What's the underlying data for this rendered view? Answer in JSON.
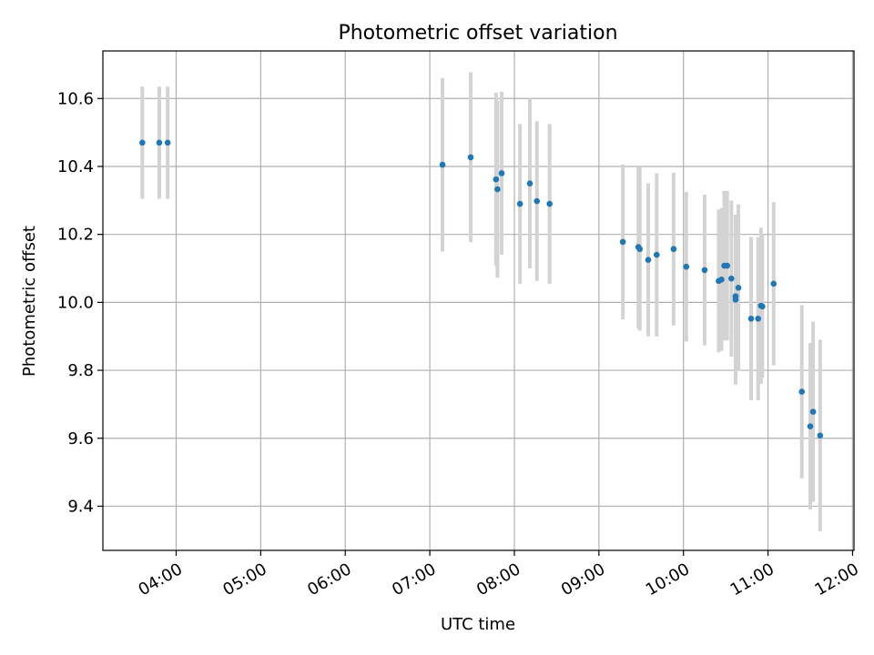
{
  "chart_data": {
    "type": "scatter",
    "title": "Photometric offset variation",
    "xlabel": "UTC time",
    "ylabel": "Photometric offset",
    "x_tick_labels": [
      "04:00",
      "05:00",
      "06:00",
      "07:00",
      "08:00",
      "09:00",
      "10:00",
      "11:00",
      "12:00"
    ],
    "y_tick_labels": [
      "9.4",
      "9.6",
      "9.8",
      "10.0",
      "10.2",
      "10.4",
      "10.6"
    ],
    "y_ticks": [
      9.4,
      9.6,
      9.8,
      10.0,
      10.2,
      10.4,
      10.6
    ],
    "xlim": [
      "03:08",
      "12:01"
    ],
    "ylim": [
      9.27,
      10.74
    ],
    "grid": true,
    "colors": {
      "point": "#1f77b4",
      "errorbar": "#d3d3d3",
      "grid": "#b0b0b0",
      "axis": "#000000"
    },
    "series": [
      {
        "points": [
          {
            "x": "03:36",
            "y": 10.47,
            "yerr": 0.165
          },
          {
            "x": "03:48",
            "y": 10.47,
            "yerr": 0.165
          },
          {
            "x": "03:54",
            "y": 10.47,
            "yerr": 0.165
          },
          {
            "x": "07:09",
            "y": 10.405,
            "yerr": 0.255
          },
          {
            "x": "07:29",
            "y": 10.427,
            "yerr": 0.25
          },
          {
            "x": "07:47",
            "y": 10.362,
            "yerr": 0.255
          },
          {
            "x": "07:48",
            "y": 10.333,
            "yerr": 0.26
          },
          {
            "x": "07:51",
            "y": 10.38,
            "yerr": 0.24
          },
          {
            "x": "08:04",
            "y": 10.29,
            "yerr": 0.235
          },
          {
            "x": "08:11",
            "y": 10.35,
            "yerr": 0.25
          },
          {
            "x": "08:16",
            "y": 10.298,
            "yerr": 0.235
          },
          {
            "x": "08:25",
            "y": 10.29,
            "yerr": 0.235
          },
          {
            "x": "09:17",
            "y": 10.178,
            "yerr": 0.228
          },
          {
            "x": "09:28",
            "y": 10.163,
            "yerr": 0.24
          },
          {
            "x": "09:29",
            "y": 10.157,
            "yerr": 0.24
          },
          {
            "x": "09:35",
            "y": 10.125,
            "yerr": 0.225
          },
          {
            "x": "09:41",
            "y": 10.14,
            "yerr": 0.24
          },
          {
            "x": "09:53",
            "y": 10.157,
            "yerr": 0.225
          },
          {
            "x": "10:02",
            "y": 10.105,
            "yerr": 0.22
          },
          {
            "x": "10:15",
            "y": 10.095,
            "yerr": 0.222
          },
          {
            "x": "10:25",
            "y": 10.063,
            "yerr": 0.21
          },
          {
            "x": "10:27",
            "y": 10.067,
            "yerr": 0.21
          },
          {
            "x": "10:29",
            "y": 10.108,
            "yerr": 0.22
          },
          {
            "x": "10:31",
            "y": 10.108,
            "yerr": 0.22
          },
          {
            "x": "10:34",
            "y": 10.07,
            "yerr": 0.23
          },
          {
            "x": "10:37",
            "y": 10.008,
            "yerr": 0.25
          },
          {
            "x": "10:37",
            "y": 10.018,
            "yerr": 0.24
          },
          {
            "x": "10:39",
            "y": 10.043,
            "yerr": 0.245
          },
          {
            "x": "10:48",
            "y": 9.952,
            "yerr": 0.24
          },
          {
            "x": "10:53",
            "y": 9.952,
            "yerr": 0.24
          },
          {
            "x": "10:55",
            "y": 9.99,
            "yerr": 0.23
          },
          {
            "x": "10:56",
            "y": 9.988,
            "yerr": 0.21
          },
          {
            "x": "11:04",
            "y": 10.055,
            "yerr": 0.24
          },
          {
            "x": "11:24",
            "y": 9.737,
            "yerr": 0.255
          },
          {
            "x": "11:30",
            "y": 9.635,
            "yerr": 0.245
          },
          {
            "x": "11:32",
            "y": 9.678,
            "yerr": 0.265
          },
          {
            "x": "11:37",
            "y": 9.608,
            "yerr": 0.282
          }
        ]
      }
    ]
  }
}
